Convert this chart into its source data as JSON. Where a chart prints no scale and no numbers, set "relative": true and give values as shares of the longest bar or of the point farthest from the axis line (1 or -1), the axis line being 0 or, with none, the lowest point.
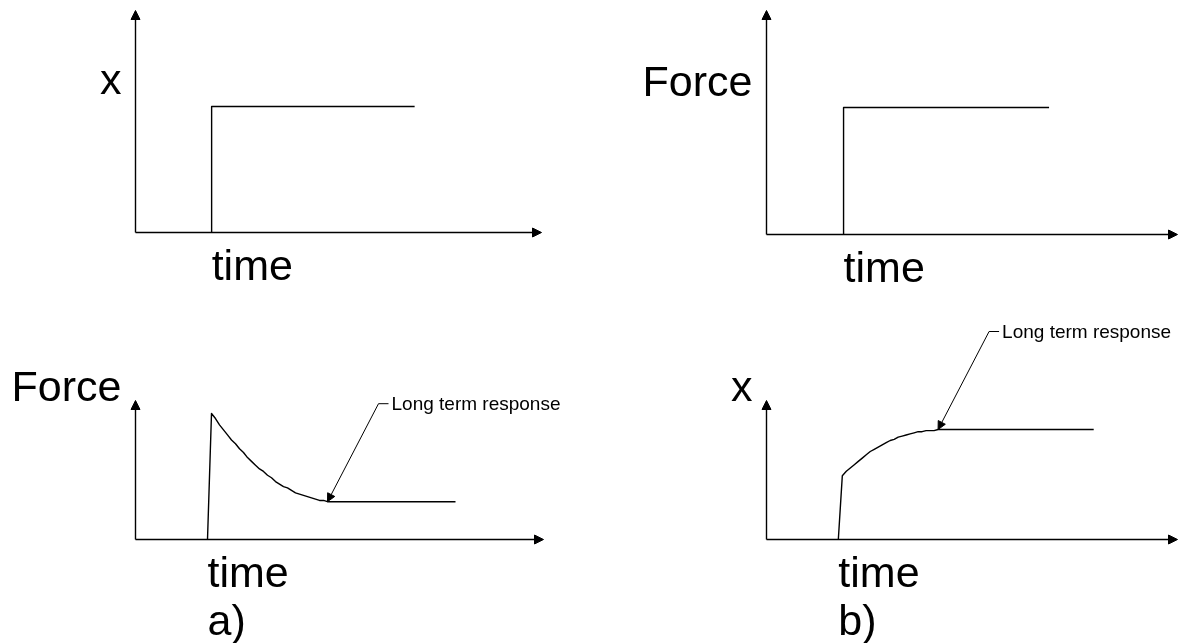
{
  "chart_data": [
    {
      "type": "step",
      "relative": true,
      "color": "#000000",
      "ylabel": "x",
      "xlabel": "time",
      "categories": [
        null,
        null,
        null,
        null,
        null,
        null,
        null,
        null,
        null,
        null,
        null,
        null,
        null,
        null,
        null,
        null,
        null
      ],
      "values": [
        null,
        null,
        null,
        0,
        1,
        1,
        1,
        1,
        1,
        1,
        1,
        1,
        null,
        null,
        null,
        null,
        null
      ]
    },
    {
      "type": "step",
      "relative": true,
      "color": "#000000",
      "ylabel": "Force",
      "xlabel": "time",
      "categories": [
        null,
        null,
        null,
        null,
        null,
        null,
        null,
        null,
        null,
        null,
        null,
        null,
        null,
        null,
        null,
        null,
        null
      ],
      "values": [
        null,
        null,
        null,
        0,
        1,
        1,
        1,
        1,
        1,
        1,
        1,
        1,
        null,
        null,
        null,
        null,
        null
      ]
    },
    {
      "type": "line",
      "relative": true,
      "color": "#000000",
      "ylabel": "Force",
      "xlabel": "time",
      "annotations": [
        "a)",
        "Long term response"
      ],
      "categories": [
        null,
        null,
        null,
        null,
        null,
        null,
        null,
        null,
        null,
        null,
        null,
        null,
        null,
        null,
        null,
        null,
        null,
        null,
        null,
        null,
        null,
        null,
        null,
        null,
        null,
        null,
        null,
        null,
        null,
        null,
        null,
        null,
        null,
        null,
        null,
        null,
        null,
        null,
        null,
        null,
        null,
        null,
        null,
        null,
        null,
        null,
        null,
        null,
        null,
        null,
        null,
        null,
        null,
        null,
        null,
        null,
        null,
        null,
        null,
        null,
        null,
        null,
        null,
        null,
        null,
        null,
        null,
        null,
        null,
        null,
        null,
        null,
        null,
        null,
        null,
        null,
        null,
        null,
        null,
        null,
        null,
        null,
        null,
        null,
        null,
        null,
        null,
        null,
        null,
        null,
        null,
        null,
        null,
        null,
        null,
        null,
        null,
        null,
        null,
        null,
        null,
        null,
        null
      ],
      "values": [
        null,
        null,
        null,
        null,
        null,
        null,
        null,
        null,
        null,
        null,
        null,
        null,
        null,
        null,
        null,
        null,
        null,
        null,
        0,
        1,
        0.96,
        0.91,
        0.87,
        0.83,
        0.79,
        0.76,
        0.72,
        0.69,
        0.65,
        0.62,
        0.59,
        0.56,
        0.54,
        0.51,
        0.49,
        0.46,
        0.44,
        0.42,
        0.41,
        0.39,
        0.37,
        0.36,
        0.35,
        0.34,
        0.33,
        0.32,
        0.31,
        0.31,
        0.3,
        0.3,
        0.3,
        0.3,
        0.3,
        0.3,
        0.3,
        0.3,
        0.3,
        0.3,
        0.3,
        0.3,
        0.3,
        0.3,
        0.3,
        0.3,
        0.3,
        0.3,
        0.3,
        0.3,
        0.3,
        0.3,
        0.3,
        0.3,
        0.3,
        0.3,
        0.3,
        0.3,
        0.3,
        0.3,
        0.3,
        0.3,
        0.3,
        null,
        null,
        null,
        null,
        null,
        null,
        null,
        null,
        null,
        null,
        null,
        null,
        null,
        null,
        null,
        null,
        null,
        null,
        null,
        null,
        null,
        null
      ]
    },
    {
      "type": "line",
      "relative": true,
      "color": "#000000",
      "ylabel": "x",
      "xlabel": "time",
      "annotations": [
        "b)",
        "Long term response"
      ],
      "categories": [
        null,
        null,
        null,
        null,
        null,
        null,
        null,
        null,
        null,
        null,
        null,
        null,
        null,
        null,
        null,
        null,
        null,
        null,
        null,
        null,
        null,
        null,
        null,
        null,
        null,
        null,
        null,
        null,
        null,
        null,
        null,
        null,
        null,
        null,
        null,
        null,
        null,
        null,
        null,
        null,
        null,
        null,
        null,
        null,
        null,
        null,
        null,
        null,
        null,
        null,
        null,
        null,
        null,
        null,
        null,
        null,
        null,
        null,
        null,
        null,
        null,
        null,
        null,
        null,
        null,
        null,
        null,
        null,
        null,
        null,
        null,
        null,
        null,
        null,
        null,
        null,
        null,
        null,
        null,
        null,
        null,
        null,
        null,
        null,
        null,
        null,
        null,
        null,
        null,
        null,
        null,
        null,
        null,
        null,
        null,
        null,
        null,
        null,
        null,
        null,
        null,
        null,
        null,
        null
      ],
      "values": [
        null,
        null,
        null,
        null,
        null,
        null,
        null,
        null,
        null,
        null,
        null,
        null,
        null,
        null,
        null,
        null,
        null,
        null,
        0,
        0.58,
        0.62,
        0.65,
        0.68,
        0.71,
        0.74,
        0.77,
        0.8,
        0.82,
        0.84,
        0.86,
        0.88,
        0.9,
        0.91,
        0.93,
        0.94,
        0.95,
        0.96,
        0.97,
        0.98,
        0.98,
        0.99,
        0.99,
        0.99,
        1,
        1,
        1,
        1,
        1,
        1,
        1,
        1,
        1,
        1,
        1,
        1,
        1,
        1,
        1,
        1,
        1,
        1,
        1,
        1,
        1,
        1,
        1,
        1,
        1,
        1,
        1,
        1,
        1,
        1,
        1,
        1,
        1,
        1,
        1,
        1,
        1,
        1,
        1,
        1,
        null,
        null,
        null,
        null,
        null,
        null,
        null,
        null,
        null,
        null,
        null,
        null,
        null,
        null,
        null,
        null,
        null,
        null,
        null,
        null,
        null
      ]
    }
  ]
}
